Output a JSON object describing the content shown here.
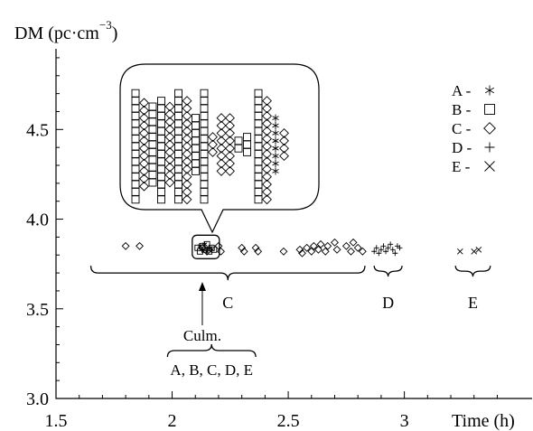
{
  "chart_data": {
    "type": "scatter",
    "ylabel": "DM (pc·cm",
    "ylabel_exp": "−3",
    "ylabel_close": ")",
    "xlabel": "Time (h)",
    "xlim": [
      1.5,
      3.55
    ],
    "ylim": [
      3.0,
      4.95
    ],
    "xticks": [
      1.5,
      2,
      2.5,
      3
    ],
    "xtick_labels": [
      "1.5",
      "2",
      "2.5",
      "3"
    ],
    "yticks": [
      3.0,
      3.5,
      4.0,
      4.5
    ],
    "ytick_labels": [
      "3.0",
      "3.5",
      "4.0",
      "4.5"
    ],
    "grid": false,
    "legend_position": "top-right",
    "series": [
      {
        "name": "A",
        "marker": "asterisk",
        "x": [
          2.12,
          2.13,
          2.14,
          2.15,
          2.16,
          2.17
        ],
        "y": [
          3.85,
          3.83,
          3.86,
          3.82,
          3.84,
          3.83
        ]
      },
      {
        "name": "B",
        "marker": "square",
        "x": [
          2.11,
          2.12,
          2.13,
          2.14,
          2.15,
          2.16,
          2.17,
          2.18
        ],
        "y": [
          3.84,
          3.82,
          3.85,
          3.83,
          3.86,
          3.82,
          3.84,
          3.83
        ]
      },
      {
        "name": "C",
        "marker": "diamond",
        "x": [
          1.8,
          1.86,
          2.13,
          2.15,
          2.2,
          2.21,
          2.3,
          2.31,
          2.36,
          2.37,
          2.48,
          2.55,
          2.56,
          2.58,
          2.6,
          2.61,
          2.63,
          2.64,
          2.66,
          2.67,
          2.7,
          2.71,
          2.75,
          2.77,
          2.78,
          2.8,
          2.82
        ],
        "y": [
          3.85,
          3.85,
          3.84,
          3.82,
          3.85,
          3.82,
          3.84,
          3.82,
          3.84,
          3.82,
          3.82,
          3.83,
          3.81,
          3.84,
          3.82,
          3.85,
          3.83,
          3.86,
          3.82,
          3.85,
          3.87,
          3.83,
          3.85,
          3.82,
          3.87,
          3.84,
          3.82
        ]
      },
      {
        "name": "D",
        "marker": "plus",
        "x": [
          2.87,
          2.88,
          2.89,
          2.9,
          2.91,
          2.92,
          2.93,
          2.94,
          2.95,
          2.96,
          2.97,
          2.98
        ],
        "y": [
          3.82,
          3.84,
          3.81,
          3.83,
          3.85,
          3.82,
          3.84,
          3.86,
          3.83,
          3.81,
          3.85,
          3.84
        ]
      },
      {
        "name": "E",
        "marker": "cross",
        "x": [
          3.24,
          3.3,
          3.32
        ],
        "y": [
          3.82,
          3.82,
          3.83
        ]
      }
    ],
    "annotations": {
      "group_labels": [
        {
          "text": "C",
          "x_from": 1.65,
          "x_to": 2.83
        },
        {
          "text": "D",
          "x_from": 2.87,
          "x_to": 2.99
        },
        {
          "text": "E",
          "x_from": 3.22,
          "x_to": 3.37
        }
      ],
      "culmination": {
        "text": "Culm.",
        "x": 2.13,
        "subtext": "A, B, C, D, E",
        "x_from": 1.98,
        "x_to": 2.36
      },
      "callout_columns": [
        {
          "marker": "square",
          "n": 15
        },
        {
          "marker": "diamond",
          "n": 12
        },
        {
          "marker": "square",
          "n": 11
        },
        {
          "marker": "square",
          "n": 14
        },
        {
          "marker": "diamond",
          "n": 11
        },
        {
          "marker": "square",
          "n": 15
        },
        {
          "marker": "diamond",
          "n": 14
        },
        {
          "marker": "square",
          "n": 8
        },
        {
          "marker": "square",
          "n": 15
        },
        {
          "marker": "diamond",
          "n": 3
        },
        {
          "marker": "diamond",
          "n": 8
        },
        {
          "marker": "diamond",
          "n": 8
        },
        {
          "marker": "square",
          "n": 2
        },
        {
          "marker": "square",
          "n": 3
        },
        {
          "marker": "square",
          "n": 15
        },
        {
          "marker": "diamond",
          "n": 14
        },
        {
          "marker": "asterisk",
          "n": 8
        },
        {
          "marker": "diamond",
          "n": 4
        }
      ]
    },
    "legend": [
      {
        "label": "A -",
        "marker": "asterisk"
      },
      {
        "label": "B -",
        "marker": "square"
      },
      {
        "label": "C -",
        "marker": "diamond"
      },
      {
        "label": "D -",
        "marker": "plus"
      },
      {
        "label": "E -",
        "marker": "cross"
      }
    ]
  }
}
